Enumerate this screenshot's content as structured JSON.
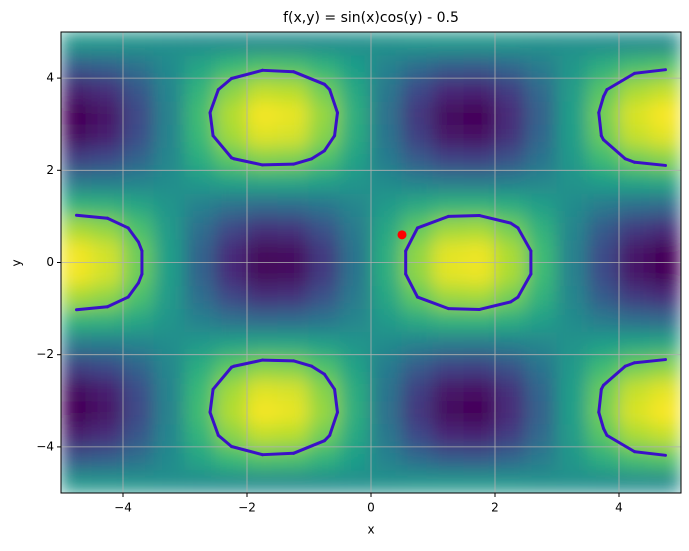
{
  "chart_data": {
    "type": "heatmap",
    "title": "f(x,y) = sin(x)cos(y) - 0.5",
    "x_label": "x",
    "y_label": "y",
    "xlim": [
      -5,
      5
    ],
    "ylim": [
      -5,
      5
    ],
    "xticks": [
      {
        "value": -4,
        "label": "−4"
      },
      {
        "value": -2,
        "label": "−2"
      },
      0,
      2,
      4
    ],
    "yticks": [
      {
        "value": -4,
        "label": "−4"
      },
      {
        "value": -2,
        "label": "−2"
      },
      0,
      2,
      4
    ],
    "grid": true,
    "colormap": "viridis",
    "zlim": [
      -1.5,
      0.5
    ],
    "x": [
      -4.75,
      -4.25,
      -3.75,
      -3.25,
      -2.75,
      -2.25,
      -1.75,
      -1.25,
      -0.75,
      -0.25,
      0.25,
      0.75,
      1.25,
      1.75,
      2.25,
      2.75,
      3.25,
      3.75,
      4.25,
      4.75
    ],
    "y": [
      -4.75,
      -4.25,
      -3.75,
      -3.25,
      -2.75,
      -2.25,
      -1.75,
      -1.25,
      -0.75,
      -0.25,
      0.25,
      0.75,
      1.25,
      1.75,
      2.25,
      2.75,
      3.25,
      3.75,
      4.25,
      4.75
    ],
    "z": [
      [
        -0.46,
        -0.47,
        -0.48,
        -0.5,
        -0.52,
        -0.53,
        -0.54,
        -0.54,
        -0.53,
        -0.51,
        -0.49,
        -0.47,
        -0.46,
        -0.46,
        -0.47,
        -0.49,
        -0.5,
        -0.52,
        -0.53,
        -0.54
      ],
      [
        -0.95,
        -0.9,
        -0.76,
        -0.55,
        -0.33,
        -0.15,
        -0.06,
        -0.08,
        -0.2,
        -0.39,
        -0.61,
        -0.8,
        -0.92,
        -0.94,
        -0.85,
        -0.67,
        -0.45,
        -0.25,
        -0.1,
        -0.05
      ],
      [
        -1.32,
        -1.24,
        -0.97,
        -0.59,
        -0.19,
        0.14,
        0.31,
        0.28,
        0.06,
        -0.3,
        -0.7,
        -1.06,
        -1.28,
        -1.31,
        -1.14,
        -0.81,
        -0.41,
        -0.03,
        0.24,
        0.32
      ],
      [
        -1.49,
        -1.39,
        -1.07,
        -0.61,
        -0.12,
        0.27,
        0.48,
        0.44,
        0.18,
        -0.25,
        -0.75,
        -1.18,
        -1.44,
        -1.48,
        -1.27,
        -0.88,
        -0.39,
        0.07,
        0.39,
        0.49
      ],
      [
        -1.42,
        -1.33,
        -1.03,
        -0.6,
        -0.15,
        0.22,
        0.41,
        0.38,
        0.13,
        -0.27,
        -0.73,
        -1.13,
        -1.38,
        -1.41,
        -1.22,
        -0.85,
        -0.4,
        0.03,
        0.33,
        0.42
      ],
      [
        -1.13,
        -1.06,
        -0.86,
        -0.57,
        -0.26,
        -0.01,
        0.12,
        0.1,
        -0.07,
        -0.35,
        -0.66,
        -0.93,
        -1.1,
        -1.12,
        -0.99,
        -0.74,
        -0.43,
        -0.14,
        0.06,
        0.13
      ],
      [
        -0.68,
        -0.66,
        -0.6,
        -0.52,
        -0.43,
        -0.36,
        -0.33,
        -0.33,
        -0.38,
        -0.46,
        -0.54,
        -0.62,
        -0.67,
        -0.68,
        -0.64,
        -0.57,
        -0.48,
        -0.4,
        -0.34,
        -0.32
      ],
      [
        -0.19,
        -0.22,
        -0.32,
        -0.47,
        -0.62,
        -0.75,
        -0.81,
        -0.8,
        -0.72,
        -0.58,
        -0.42,
        -0.29,
        -0.2,
        -0.19,
        -0.26,
        -0.38,
        -0.53,
        -0.68,
        -0.78,
        -0.82
      ],
      [
        0.23,
        0.16,
        -0.08,
        -0.42,
        -0.78,
        -1.07,
        -1.22,
        -1.2,
        -1.0,
        -0.68,
        -0.32,
        0.0,
        0.2,
        0.22,
        0.07,
        -0.22,
        -0.58,
        -0.92,
        -1.16,
        -1.23
      ],
      [
        0.47,
        0.37,
        0.05,
        -0.4,
        -0.87,
        -1.25,
        -1.45,
        -1.42,
        -1.16,
        -0.74,
        -0.26,
        0.16,
        0.42,
        0.45,
        0.25,
        -0.13,
        -0.61,
        -1.05,
        -1.37,
        -1.47
      ],
      [
        0.47,
        0.37,
        0.05,
        -0.4,
        -0.87,
        -1.25,
        -1.45,
        -1.42,
        -1.16,
        -0.74,
        -0.26,
        0.16,
        0.42,
        0.45,
        0.25,
        -0.13,
        -0.61,
        -1.05,
        -1.37,
        -1.47
      ],
      [
        0.23,
        0.16,
        -0.08,
        -0.42,
        -0.78,
        -1.07,
        -1.22,
        -1.2,
        -1.0,
        -0.68,
        -0.32,
        0.0,
        0.2,
        0.22,
        0.07,
        -0.22,
        -0.58,
        -0.92,
        -1.16,
        -1.23
      ],
      [
        -0.19,
        -0.22,
        -0.32,
        -0.47,
        -0.62,
        -0.75,
        -0.81,
        -0.8,
        -0.72,
        -0.58,
        -0.42,
        -0.29,
        -0.2,
        -0.19,
        -0.26,
        -0.38,
        -0.53,
        -0.68,
        -0.78,
        -0.82
      ],
      [
        -0.68,
        -0.66,
        -0.6,
        -0.52,
        -0.43,
        -0.36,
        -0.33,
        -0.33,
        -0.38,
        -0.46,
        -0.54,
        -0.62,
        -0.67,
        -0.68,
        -0.64,
        -0.57,
        -0.48,
        -0.4,
        -0.34,
        -0.32
      ],
      [
        -1.13,
        -1.06,
        -0.86,
        -0.57,
        -0.26,
        -0.01,
        0.12,
        0.1,
        -0.07,
        -0.35,
        -0.66,
        -0.93,
        -1.1,
        -1.12,
        -0.99,
        -0.74,
        -0.43,
        -0.14,
        0.06,
        0.13
      ],
      [
        -1.42,
        -1.33,
        -1.03,
        -0.6,
        -0.15,
        0.22,
        0.41,
        0.38,
        0.13,
        -0.27,
        -0.73,
        -1.13,
        -1.38,
        -1.41,
        -1.22,
        -0.85,
        -0.4,
        0.03,
        0.33,
        0.42
      ],
      [
        -1.49,
        -1.39,
        -1.07,
        -0.61,
        -0.12,
        0.27,
        0.48,
        0.44,
        0.18,
        -0.25,
        -0.75,
        -1.18,
        -1.44,
        -1.48,
        -1.27,
        -0.88,
        -0.39,
        0.07,
        0.39,
        0.49
      ],
      [
        -1.32,
        -1.24,
        -0.97,
        -0.59,
        -0.19,
        0.14,
        0.31,
        0.28,
        0.06,
        -0.3,
        -0.7,
        -1.06,
        -1.28,
        -1.31,
        -1.14,
        -0.81,
        -0.41,
        -0.03,
        0.24,
        0.32
      ],
      [
        -0.95,
        -0.9,
        -0.76,
        -0.55,
        -0.33,
        -0.15,
        -0.06,
        -0.08,
        -0.2,
        -0.39,
        -0.61,
        -0.8,
        -0.92,
        -0.94,
        -0.85,
        -0.67,
        -0.45,
        -0.25,
        -0.1,
        -0.05
      ],
      [
        -0.46,
        -0.47,
        -0.48,
        -0.5,
        -0.52,
        -0.53,
        -0.54,
        -0.54,
        -0.53,
        -0.51,
        -0.49,
        -0.47,
        -0.46,
        -0.46,
        -0.47,
        -0.49,
        -0.5,
        -0.52,
        -0.53,
        -0.54
      ]
    ],
    "contour_level": 0,
    "contour_color": "#3a10c8",
    "point": {
      "x": 0.5,
      "y": 0.6,
      "color": "#ff0000"
    }
  }
}
